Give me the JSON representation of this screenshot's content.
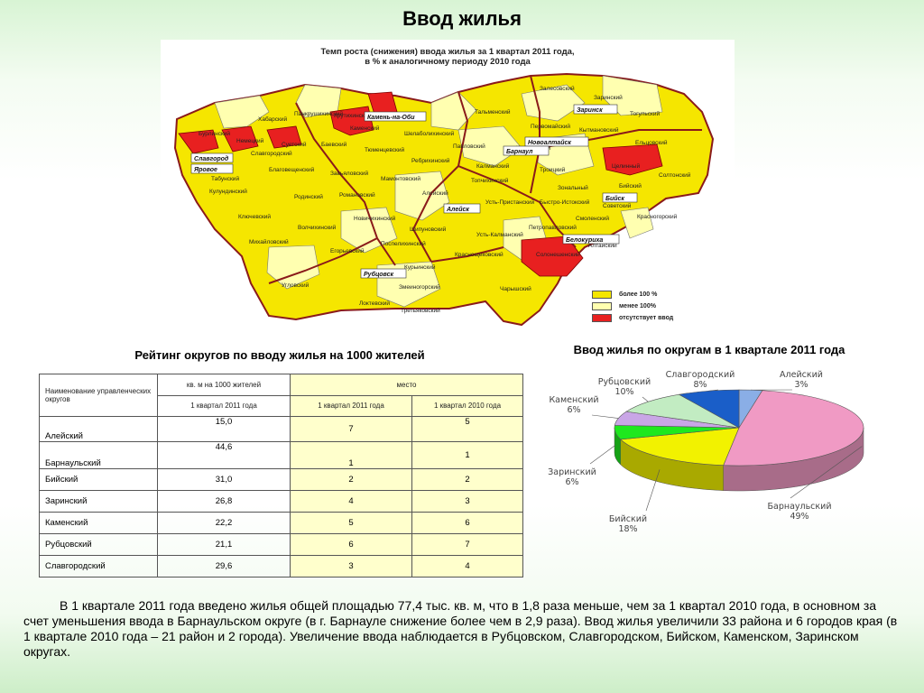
{
  "page": {
    "title": "Ввод жилья"
  },
  "map": {
    "title_line1": "Темп роста (снижения) ввода жилья за  1 квартал 2011 года,",
    "title_line2": "в % к аналогичному периоду 2010 года",
    "legend": [
      {
        "label": "более 100 %",
        "color": "#f5e600"
      },
      {
        "label": "менее 100%",
        "color": "#ffffb0"
      },
      {
        "label": "отсутствует ввод",
        "color": "#e82020"
      }
    ],
    "districts": {
      "krutikhinsky": "Крутихинский",
      "pankrushikhinsky": "Панкрушихинский",
      "khabarsky": "Хабарский",
      "burlinsky": "Бурлинский",
      "kamensky": "Каменский",
      "nemetsky": "Немецкий",
      "suetsky": "Суетский",
      "baevsky": "Баевский",
      "slavgorodsky": "Славгородский",
      "tyumentsevsky": "Тюменцевский",
      "shelabolikhinsky": "Шелаболихинский",
      "zalesovsky": "Залесовский",
      "zarinsky": "Заринский",
      "talmensky": "Тальменский",
      "pervomaysky": "Первомайский",
      "kytmanovsky": "Кытмановский",
      "togulsky": "Тогульский",
      "eltsovsky": "Ельцовский",
      "pavlovsky": "Павловский",
      "kosikhinsky": "Косихинский",
      "blagoveshchensky": "Благовещенский",
      "tabunsky": "Табунский",
      "zavyalovsky": "Завьяловский",
      "rebrikhinsky": "Ребрихинский",
      "kalmansky": "Калманский",
      "troitsky": "Троицкий",
      "tselinny": "Целинный",
      "soltonsky": "Солтонский",
      "kulundinsky": "Кулундинский",
      "rodinsky": "Родинский",
      "romanovsky": "Романовский",
      "mamontovsky": "Мамонтовский",
      "aleysky": "Алейский",
      "topchikhinsky": "Топчихинский",
      "zonalny": "Зональный",
      "biysky": "Бийский",
      "sovetsky": "Советский",
      "klyuchevsky": "Ключевский",
      "novichikhinsky": "Новичихинский",
      "ust_pristansky": "Усть-Пристанский",
      "bystroistoksky": "Быстро-Истокский",
      "smolensky": "Смоленский",
      "krasnogorsky": "Красногорский",
      "mikhaylovsky": "Михайловский",
      "volchikhinsky": "Волчихинский",
      "shipunovsky": "Шипуновский",
      "petropavlovsky": "Петропавловский",
      "altaysky": "Алтайский",
      "ust_kalmansky": "Усть-Калманский",
      "egorievsky": "Егорьевский",
      "pospelikhinsky": "Поспелихинский",
      "krasnoshchekovsky": "Краснощековский",
      "soloneshensky": "Солонешенский",
      "kurinsky": "Курьинский",
      "uglovsky": "Угловский",
      "zmeinogorsky": "Змеиногорский",
      "charyshsky": "Чарышский",
      "lokotevsky": "Локтевский",
      "tretyakovsky": "Третьяковский"
    },
    "cities": {
      "kamen_na_obi": "Камень-на-Оби",
      "slavgorod": "Славгород",
      "yarovoe": "Яровое",
      "novoaltaysk": "Новоалтайск",
      "barnaul": "Барнаул",
      "zarinsk": "Заринск",
      "aleysk": "Алейск",
      "biysk": "Бийск",
      "belokurikha": "Белокуриха",
      "rubtsovsk": "Рубцовск"
    }
  },
  "rating": {
    "title": "Рейтинг округов по вводу жилья на 1000 жителей",
    "headers": {
      "name": "Наименование управленческих округов",
      "value": "кв. м на 1000 жителей",
      "place": "место",
      "value_period": "1 квартал 2011 года",
      "place_2011": "1 квартал 2011 года",
      "place_2010": "1 квартал 2010 года"
    },
    "rows": [
      {
        "name": "Алейский",
        "value": "15,0",
        "place_2011": "7",
        "place_2010": "5"
      },
      {
        "name": "Барнаульский",
        "value": "44,6",
        "place_2011": "1",
        "place_2010": "1"
      },
      {
        "name": "Бийский",
        "value": "31,0",
        "place_2011": "2",
        "place_2010": "2"
      },
      {
        "name": "Заринский",
        "value": "26,8",
        "place_2011": "4",
        "place_2010": "3"
      },
      {
        "name": "Каменский",
        "value": "22,2",
        "place_2011": "5",
        "place_2010": "6"
      },
      {
        "name": "Рубцовский",
        "value": "21,1",
        "place_2011": "6",
        "place_2010": "7"
      },
      {
        "name": "Славгородский",
        "value": "29,6",
        "place_2011": "3",
        "place_2010": "4"
      }
    ]
  },
  "chart_data": {
    "type": "pie",
    "title": "Ввод жилья по округам в 1 квартале 2011 года",
    "slices": [
      {
        "name": "Алейский",
        "label": "3%",
        "value": 3,
        "color": "#8aaee6"
      },
      {
        "name": "Барнаульский",
        "label": "49%",
        "value": 49,
        "color": "#f09ac4"
      },
      {
        "name": "Бийский",
        "label": "18%",
        "value": 18,
        "color": "#f2f200"
      },
      {
        "name": "Заринский",
        "label": "6%",
        "value": 6,
        "color": "#1ee81e"
      },
      {
        "name": "Каменский",
        "label": "6%",
        "value": 6,
        "color": "#c9a6e6"
      },
      {
        "name": "Рубцовский",
        "label": "10%",
        "value": 10,
        "color": "#c2ecc2"
      },
      {
        "name": "Славгородский",
        "label": "8%",
        "value": 8,
        "color": "#1a5ec8"
      }
    ],
    "legend": "none"
  },
  "paragraph": "В 1 квартале 2011 года введено жилья общей площадью 77,4 тыс. кв. м, что в 1,8 раза меньше, чем за 1 квартал 2010 года, в основном за счет уменьшения ввода в Барнаульском округе (в г. Барнауле снижение  более чем в 2,9 раза). Ввод жилья увеличили 33 района и 6 городов края (в 1 квартале 2010 года –  21 район и 2 города). Увеличение ввода наблюдается в Рубцовском, Славгородском,  Бийском, Каменском, Заринском округах."
}
